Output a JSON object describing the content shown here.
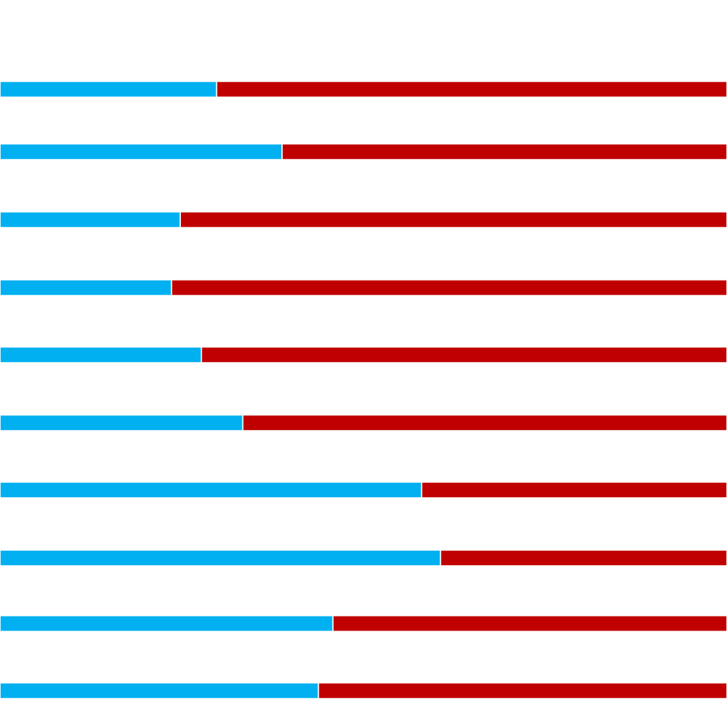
{
  "chart_data": {
    "type": "bar",
    "orientation": "horizontal",
    "stacked": true,
    "normalized_percent": true,
    "grid": false,
    "legend": "none",
    "categories": [
      "",
      "",
      "",
      "",
      "",
      "",
      "",
      "",
      "",
      ""
    ],
    "series": [
      {
        "color": "#00B0F0",
        "values": [
          29.8,
          38.8,
          24.8,
          23.6,
          27.7,
          33.4,
          58.0,
          60.6,
          45.8,
          43.8
        ]
      },
      {
        "color": "#C00000",
        "values": [
          70.2,
          61.2,
          75.2,
          76.4,
          72.3,
          66.6,
          42.0,
          39.4,
          54.2,
          56.2
        ]
      }
    ],
    "xlim": [
      0,
      100
    ]
  }
}
